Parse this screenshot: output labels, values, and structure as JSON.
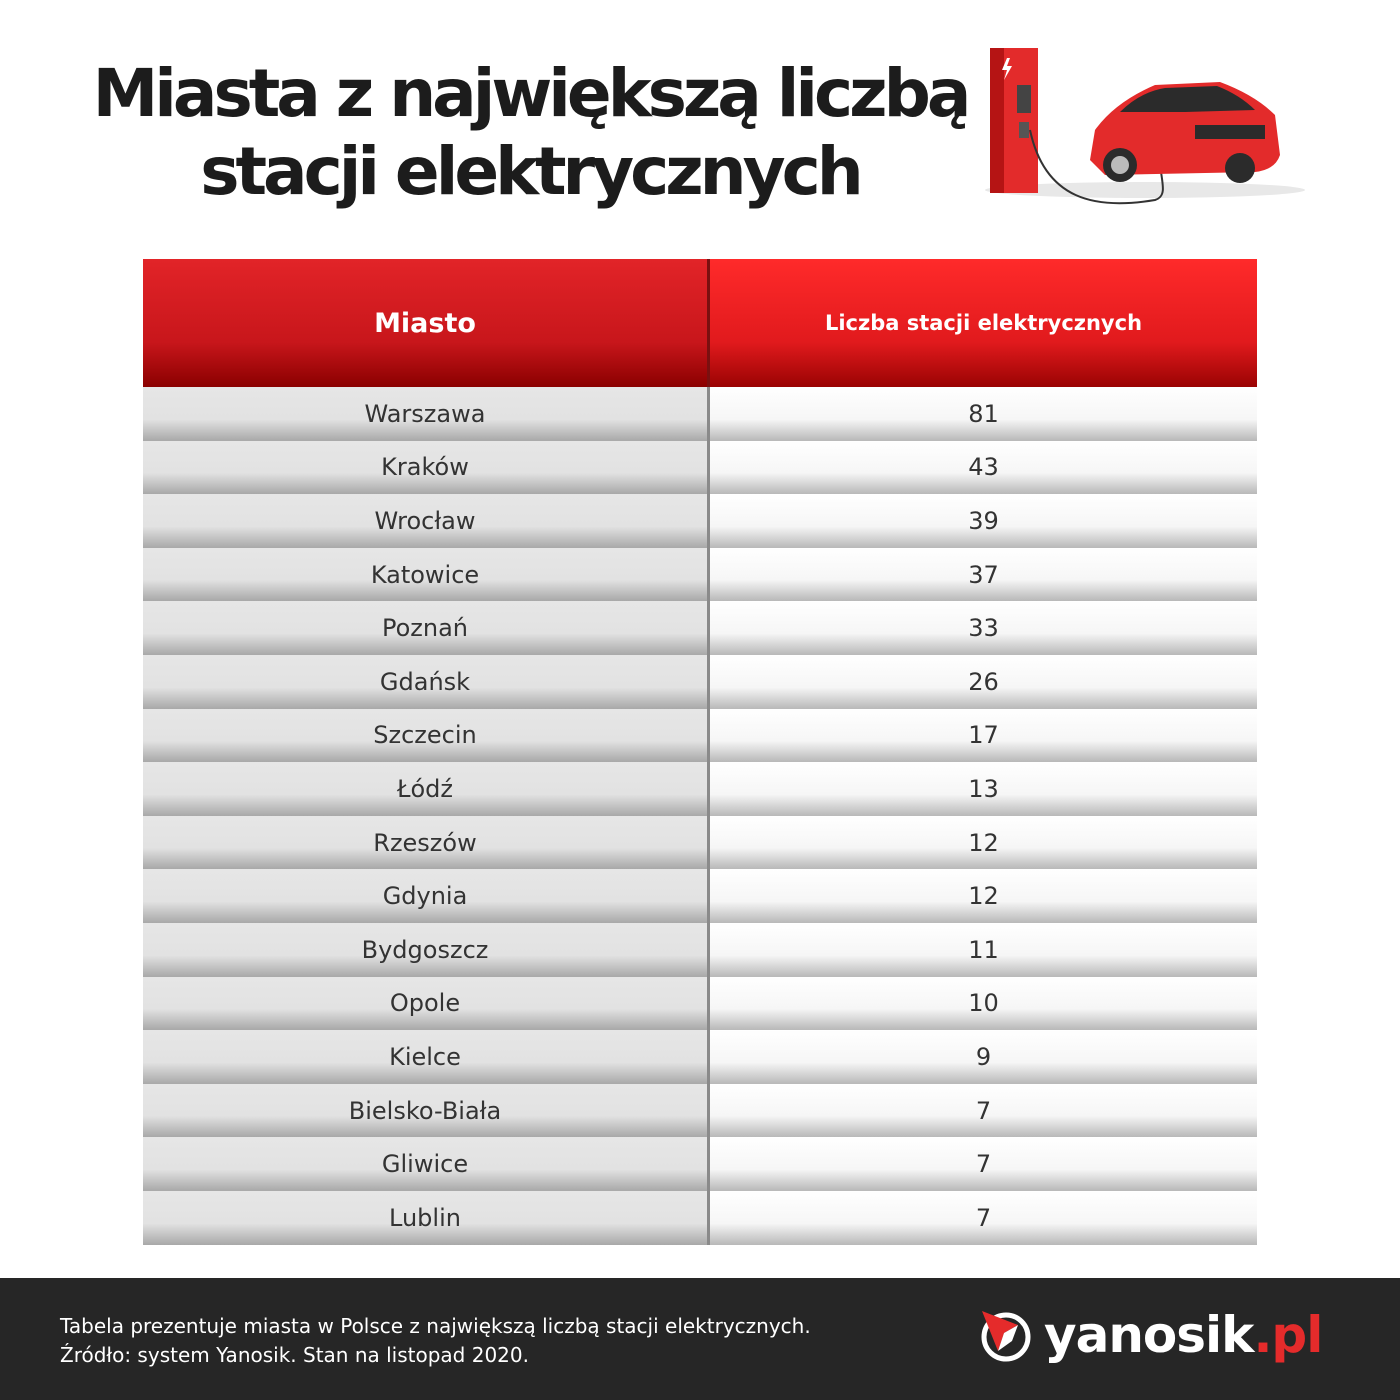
{
  "title_line1": "Miasta z największą liczbą",
  "title_line2": "stacji elektrycznych",
  "chart_data": {
    "type": "table",
    "columns": [
      "Miasto",
      "Liczba stacji elektrycznych"
    ],
    "rows": [
      [
        "Warszawa",
        "81"
      ],
      [
        "Kraków",
        "43"
      ],
      [
        "Wrocław",
        "39"
      ],
      [
        "Katowice",
        "37"
      ],
      [
        "Poznań",
        "33"
      ],
      [
        "Gdańsk",
        "26"
      ],
      [
        "Szczecin",
        "17"
      ],
      [
        "Łódź",
        "13"
      ],
      [
        "Rzeszów",
        "12"
      ],
      [
        "Gdynia",
        "12"
      ],
      [
        "Bydgoszcz",
        "11"
      ],
      [
        "Opole",
        "10"
      ],
      [
        "Kielce",
        "9"
      ],
      [
        "Bielsko-Biała",
        "7"
      ],
      [
        "Gliwice",
        "7"
      ],
      [
        "Lublin",
        "7"
      ]
    ]
  },
  "footer": {
    "note_line1": "Tabela prezentuje miasta w Polsce z największą liczbą stacji elektrycznych.",
    "note_line2": "Źródło: system Yanosik. Stan na listopad 2020.",
    "logo_main": "yanosik",
    "logo_suffix": ".pl"
  },
  "colors": {
    "accent": "#e52b2b",
    "footer_bg": "#262626"
  },
  "illustration_icons": [
    "charging-station-icon",
    "electric-car-icon"
  ]
}
